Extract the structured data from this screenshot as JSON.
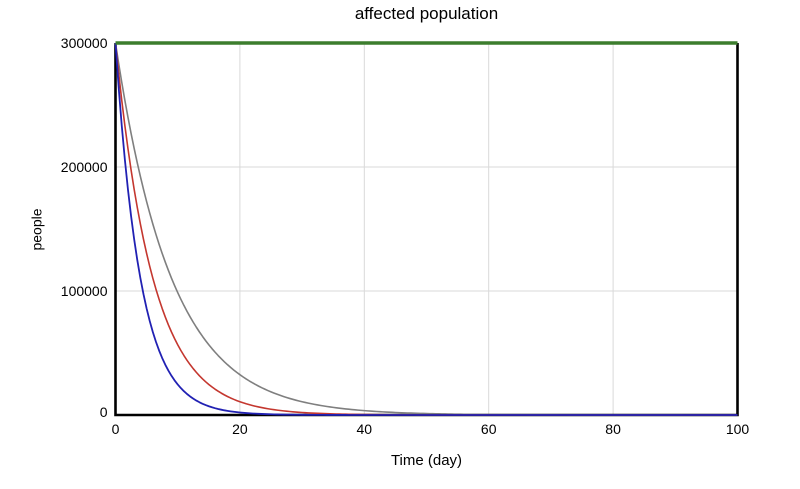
{
  "chart": {
    "background": "#ffffff"
  },
  "chart_data": {
    "type": "line",
    "title": "affected population",
    "xlabel": "Time (day)",
    "ylabel": "people",
    "xlim": [
      0,
      100
    ],
    "ylim": [
      0,
      300000
    ],
    "x_tick_values": [
      0,
      20,
      40,
      60,
      80,
      100
    ],
    "x_tick_labels": [
      "0",
      "20",
      "40",
      "60",
      "80",
      "100"
    ],
    "y_tick_values": [
      0,
      100000,
      200000,
      300000
    ],
    "y_tick_labels": [
      "0",
      "100000",
      "200000",
      "300000"
    ],
    "grid": true,
    "legend": "none",
    "colors": {
      "grid": "#d9d9d9",
      "axis": "#000000",
      "text": "#000000"
    },
    "sample_x": [
      0,
      5,
      10,
      15,
      20,
      25,
      30,
      35,
      40,
      45,
      50,
      55,
      60,
      65,
      70,
      75,
      80,
      85,
      90,
      95,
      100
    ],
    "series": [
      {
        "name": "gray-curve",
        "color": "#7f7f7f",
        "stroke_width": 1.6,
        "model": "exponential_decay",
        "initial": 300000,
        "time_constant_days": 9,
        "values": [
          300000,
          172125,
          98757,
          56664,
          32508,
          18654,
          10702,
          6140,
          3523,
          2021,
          1160,
          666,
          382,
          219,
          126,
          72,
          41,
          24,
          14,
          8,
          5
        ]
      },
      {
        "name": "red-curve",
        "color": "#c4372f",
        "stroke_width": 1.6,
        "model": "exponential_decay",
        "initial": 300000,
        "time_constant_days": 6,
        "values": [
          300000,
          130380,
          56664,
          24625,
          10702,
          4651,
          2021,
          879,
          382,
          166,
          72,
          31,
          14,
          6,
          3,
          1,
          0,
          0,
          0,
          0,
          0
        ]
      },
      {
        "name": "blue-curve",
        "color": "#2121b3",
        "stroke_width": 1.8,
        "model": "exponential_decay",
        "initial": 300000,
        "time_constant_days": 4,
        "values": [
          300000,
          85949,
          24625,
          7056,
          2021,
          579,
          166,
          48,
          14,
          4,
          1,
          0,
          0,
          0,
          0,
          0,
          0,
          0,
          0,
          0,
          0
        ]
      },
      {
        "name": "green-constant-line",
        "color": "#3c7d2d",
        "stroke_width": 3.6,
        "model": "constant",
        "initial": 300000,
        "time_constant_days": null,
        "values": [
          300000,
          300000,
          300000,
          300000,
          300000,
          300000,
          300000,
          300000,
          300000,
          300000,
          300000,
          300000,
          300000,
          300000,
          300000,
          300000,
          300000,
          300000,
          300000,
          300000,
          300000
        ]
      }
    ]
  }
}
